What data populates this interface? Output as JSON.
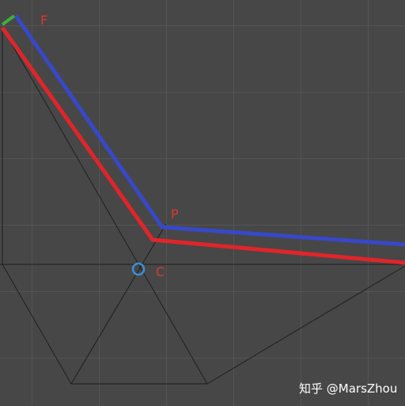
{
  "labels": {
    "f": "F",
    "p": "P",
    "c": "C"
  },
  "watermark": "知乎 @MarsZhou"
}
